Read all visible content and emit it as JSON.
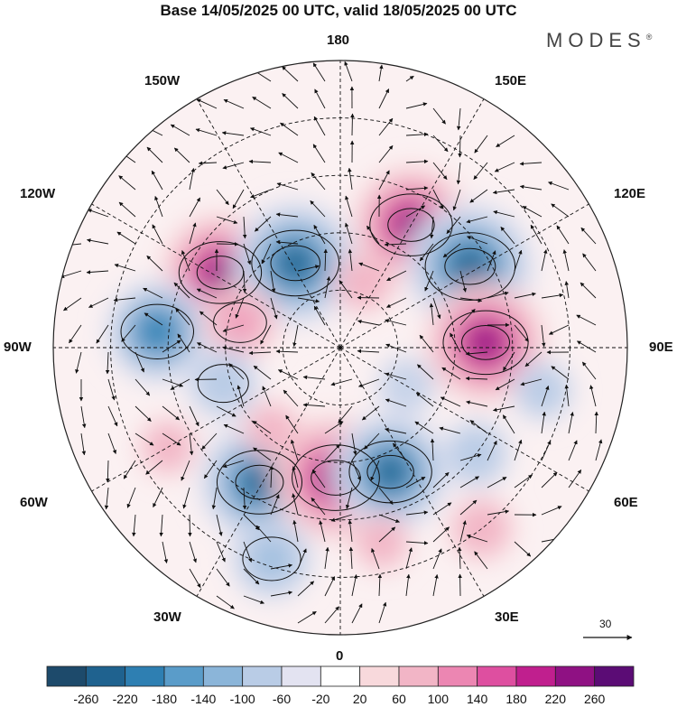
{
  "title": "Base 14/05/2025 00 UTC, valid 18/05/2025 00 UTC",
  "brand": "MODES",
  "brand_mark": "®",
  "longitude_labels": {
    "top": "180",
    "top_left": "150W",
    "top_right": "150E",
    "left_upper": "120W",
    "right_upper": "120E",
    "left": "90W",
    "right": "90E",
    "left_lower": "60W",
    "right_lower": "60E",
    "bottom_left": "30W",
    "bottom_right": "30E",
    "bottom": "0"
  },
  "vector_scale_label": "30",
  "colorbar": {
    "tick_labels": [
      "-260",
      "-220",
      "-180",
      "-140",
      "-100",
      "-60",
      "-20",
      "20",
      "60",
      "100",
      "140",
      "180",
      "220",
      "260"
    ],
    "colors": [
      "#1d4a6b",
      "#1f628f",
      "#2e7fb2",
      "#5a9cc9",
      "#8bb5d9",
      "#b9cce6",
      "#e3e3f1",
      "#ffffff",
      "#f8d9dc",
      "#f2b5c6",
      "#ec86b2",
      "#de4fa0",
      "#c01f8e",
      "#8f1183",
      "#5b0c75"
    ]
  },
  "anomalies": [
    {
      "lat": 53,
      "lon": -122,
      "value": 230
    },
    {
      "lat": 65,
      "lon": -152,
      "value": -250
    },
    {
      "lat": 53,
      "lon": 150,
      "value": 230
    },
    {
      "lat": 50,
      "lon": 122,
      "value": -260
    },
    {
      "lat": 52,
      "lon": 92,
      "value": 240
    },
    {
      "lat": 42,
      "lon": -95,
      "value": -190
    },
    {
      "lat": 63,
      "lon": -104,
      "value": 110
    },
    {
      "lat": 58,
      "lon": -73,
      "value": -100
    },
    {
      "lat": 49,
      "lon": -31,
      "value": -240
    },
    {
      "lat": 56,
      "lon": -2,
      "value": 250
    },
    {
      "lat": 55,
      "lon": 22,
      "value": -230
    },
    {
      "lat": 32,
      "lon": -18,
      "value": -130
    },
    {
      "lat": 38,
      "lon": 12,
      "value": 60
    },
    {
      "lat": 30,
      "lon": 38,
      "value": 80
    },
    {
      "lat": 45,
      "lon": 52,
      "value": -90
    },
    {
      "lat": 36,
      "lon": 78,
      "value": -70
    },
    {
      "lat": 38,
      "lon": -60,
      "value": 60
    },
    {
      "lat": 70,
      "lon": 60,
      "value": -60
    },
    {
      "lat": 62,
      "lon": -40,
      "value": 60
    },
    {
      "lat": 72,
      "lon": 160,
      "value": 70
    }
  ]
}
